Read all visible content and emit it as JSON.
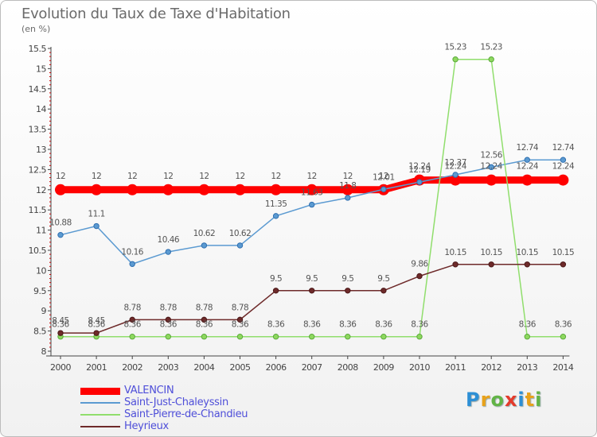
{
  "title": "Evolution du Taux de Taxe d'Habitation",
  "subtitle": "(en %)",
  "logo": {
    "text": "Proxiti",
    "colors": [
      "#2d8fd5",
      "#e8a21b",
      "#62b446",
      "#e43b2c",
      "#2d8fd5",
      "#e8a21b",
      "#62b446"
    ]
  },
  "chart_data": {
    "type": "line",
    "x": [
      "2000",
      "2001",
      "2002",
      "2003",
      "2004",
      "2005",
      "2006",
      "2007",
      "2008",
      "2009",
      "2010",
      "2011",
      "2012",
      "2013",
      "2014"
    ],
    "ylim": [
      8,
      15.5
    ],
    "yticks": [
      "8",
      "8.5",
      "9",
      "9.5",
      "10",
      "10.5",
      "11",
      "11.5",
      "12",
      "12.5",
      "13",
      "13.5",
      "14",
      "14.5",
      "15",
      "15.5"
    ],
    "grid": false,
    "legend_position": "bottom-left",
    "series": [
      {
        "name": "VALENCIN",
        "color": "#ff0000",
        "values": [
          12,
          12,
          12,
          12,
          12,
          12,
          12,
          12,
          12,
          12,
          12.24,
          12.24,
          12.24,
          12.24,
          12.24
        ],
        "labels": [
          "12",
          "12",
          "12",
          "12",
          "12",
          "12",
          "12",
          "12",
          "12",
          "12",
          "12.24",
          "12.24",
          "12.24",
          "12.24",
          "12.24"
        ]
      },
      {
        "name": "Saint-Just-Chaleyssin",
        "color": "#5b9ad1",
        "values": [
          10.88,
          11.1,
          10.16,
          10.46,
          10.62,
          10.62,
          11.35,
          11.63,
          11.8,
          12.01,
          12.19,
          12.37,
          12.56,
          12.74,
          12.74
        ],
        "labels": [
          "10.88",
          "11.1",
          "10.16",
          "10.46",
          "10.62",
          "10.62",
          "11.35",
          "11.63",
          "11.8",
          "12.01",
          "12.19",
          "12.37",
          "12.56",
          "12.74",
          "12.74"
        ]
      },
      {
        "name": "Saint-Pierre-de-Chandieu",
        "color": "#90de6c",
        "values": [
          8.36,
          8.36,
          8.36,
          8.36,
          8.36,
          8.36,
          8.36,
          8.36,
          8.36,
          8.36,
          8.36,
          15.23,
          15.23,
          8.36,
          8.36
        ],
        "labels": [
          "8.36",
          "8.36",
          "8.36",
          "8.36",
          "8.36",
          "8.36",
          "8.36",
          "8.36",
          "8.36",
          "8.36",
          "8.36",
          "15.23",
          "15.23",
          "8.36",
          "8.36"
        ]
      },
      {
        "name": "Heyrieux",
        "color": "#6e2a2a",
        "values": [
          8.45,
          8.45,
          8.78,
          8.78,
          8.78,
          8.78,
          9.5,
          9.5,
          9.5,
          9.5,
          9.86,
          10.15,
          10.15,
          10.15,
          10.15
        ],
        "labels": [
          "8.45",
          "8.45",
          "8.78",
          "8.78",
          "8.78",
          "8.78",
          "9.5",
          "9.5",
          "9.5",
          "9.5",
          "9.86",
          "10.15",
          "10.15",
          "10.15",
          "10.15"
        ]
      }
    ]
  }
}
